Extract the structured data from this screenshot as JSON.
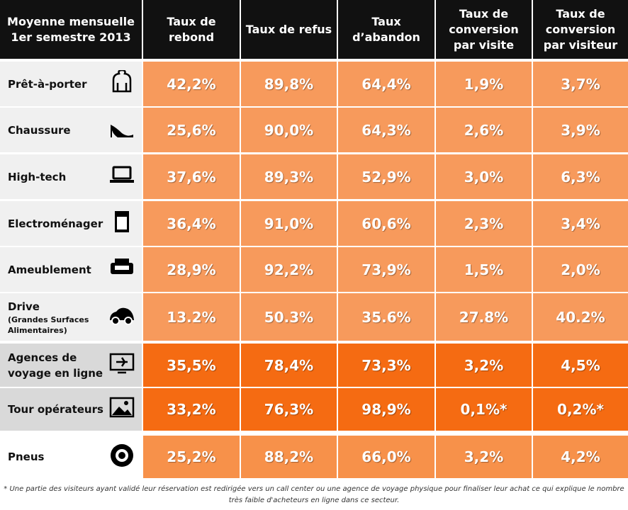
{
  "header": {
    "corner": [
      "Moyenne mensuelle",
      "1er semestre 2013"
    ],
    "columns": [
      [
        "Taux de",
        "rebond"
      ],
      [
        "Taux de refus"
      ],
      [
        "Taux",
        "d’abandon"
      ],
      [
        "Taux de",
        "conversion",
        "par visite"
      ],
      [
        "Taux de",
        "conversion",
        "par visiteur"
      ]
    ]
  },
  "rows": [
    {
      "label": [
        "Prêt-à-porter"
      ],
      "values": [
        "42,2%",
        "89,8%",
        "64,4%",
        "1,9%",
        "3,7%"
      ]
    },
    {
      "label": [
        "Chaussure"
      ],
      "values": [
        "25,6%",
        "90,0%",
        "64,3%",
        "2,6%",
        "3,9%"
      ]
    },
    {
      "label": [
        "High-tech"
      ],
      "values": [
        "37,6%",
        "89,3%",
        "52,9%",
        "3,0%",
        "6,3%"
      ]
    },
    {
      "label": [
        "Electroménager"
      ],
      "values": [
        "36,4%",
        "91,0%",
        "60,6%",
        "2,3%",
        "3,4%"
      ]
    },
    {
      "label": [
        "Ameublement"
      ],
      "values": [
        "28,9%",
        "92,2%",
        "73,9%",
        "1,5%",
        "2,0%"
      ]
    },
    {
      "label": [
        "Drive"
      ],
      "sublabel": [
        "(Grandes Surfaces",
        "Alimentaires)"
      ],
      "values": [
        "13.2%",
        "50.3%",
        "35.6%",
        "27.8%",
        "40.2%"
      ]
    },
    {
      "label": [
        "Agences de",
        "voyage en ligne"
      ],
      "values": [
        "35,5%",
        "78,4%",
        "73,3%",
        "3,2%",
        "4,5%"
      ]
    },
    {
      "label": [
        "Tour opérateurs"
      ],
      "values": [
        "33,2%",
        "76,3%",
        "98,9%",
        "0,1%*",
        "0,2%*"
      ]
    },
    {
      "label": [
        "Pneus"
      ],
      "values": [
        "25,2%",
        "88,2%",
        "66,0%",
        "3,2%",
        "4,2%"
      ]
    }
  ],
  "footnote": [
    "* Une partie des visiteurs ayant validé leur réservation est redirigée vers un call center  ou une agence de voyage physique pour finaliser leur achat ce qui explique le nombre",
    "très faible d'acheteurs en ligne dans ce secteur."
  ]
}
